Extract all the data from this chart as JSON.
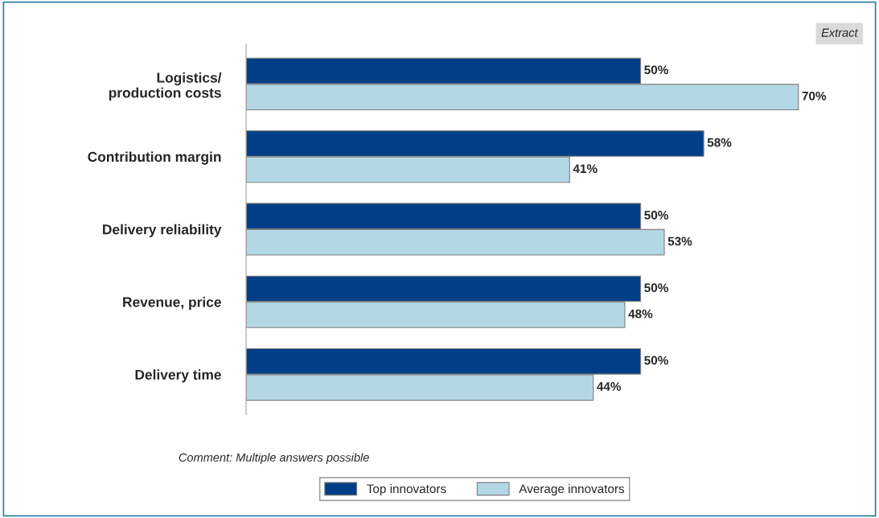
{
  "chart_data": {
    "type": "bar",
    "orientation": "horizontal",
    "categories": [
      "Logistics/\nproduction costs",
      "Contribution margin",
      "Delivery reliability",
      "Revenue, price",
      "Delivery time"
    ],
    "series": [
      {
        "name": "Top innovators",
        "color": "#003f87",
        "values": [
          50,
          58,
          50,
          50,
          50
        ],
        "value_labels": [
          "50%",
          "58%",
          "50%",
          "50%",
          "50%"
        ]
      },
      {
        "name": "Average innovators",
        "color": "#b4d7e6",
        "values": [
          70,
          41,
          53,
          48,
          44
        ],
        "value_labels": [
          "70%",
          "41%",
          "53%",
          "48%",
          "44%"
        ]
      }
    ],
    "annotations": [
      "Extract",
      "Comment: Multiple answers possible"
    ],
    "legend": "bottom",
    "grid": false
  }
}
